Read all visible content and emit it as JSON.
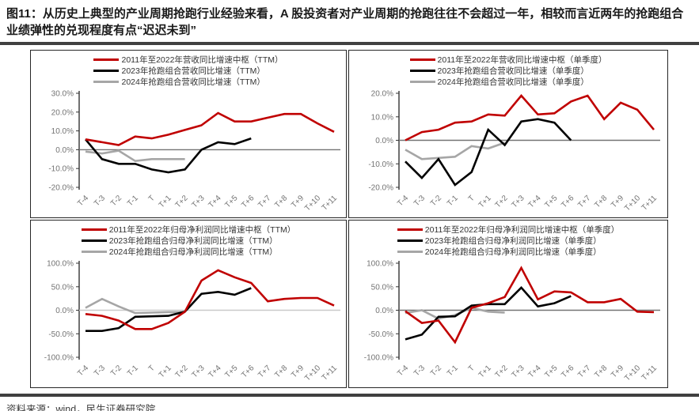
{
  "title": "图11：从历史上典型的产业周期抢跑行业经验来看，A 股投资者对产业周期的抢跑往往不会超过一年，相较而言近两年的抢跑组合业绩弹性的兑现程度有点“迟迟未到”",
  "source": "资料来源：wind，民生证券研究院",
  "colors": {
    "accent_red": "#C00000",
    "series_black": "#000000",
    "series_gray": "#A6A6A6",
    "axis": "#333333",
    "tick_label": "#737373",
    "divider_bar": "#404040"
  },
  "chart_data": [
    {
      "type": "line",
      "position": "top-left",
      "categories": [
        "T-4",
        "T-3",
        "T-2",
        "T-1",
        "T",
        "T+1",
        "T+2",
        "T+3",
        "T+4",
        "T+5",
        "T+6",
        "T+7",
        "T+8",
        "T+9",
        "T+10",
        "T+11"
      ],
      "ylim": [
        -20,
        30
      ],
      "ytick_values": [
        30,
        20,
        10,
        0,
        -10,
        -20
      ],
      "ytick_labels": [
        "30.0%",
        "20.0%",
        "10.0%",
        "0.0%",
        "-10.0%",
        "-20.0%"
      ],
      "zero_line_color": "#737373",
      "legend_position": "top",
      "grid": false,
      "series": [
        {
          "name": "2011年至2022年营收同比增速中枢（TTM）",
          "color": "#C00000",
          "values": [
            5.5,
            4,
            2.5,
            7,
            6,
            8,
            10.5,
            13,
            19.5,
            15,
            15,
            17,
            19,
            19,
            14,
            9.5
          ]
        },
        {
          "name": "2023年抢跑组合营收同比增速（TTM）",
          "color": "#000000",
          "values": [
            5.5,
            -5,
            -7.5,
            -7.5,
            -10.5,
            -12,
            -10.5,
            0,
            4,
            3,
            6
          ]
        },
        {
          "name": "2024年抢跑组合营收同比增速（TTM）",
          "color": "#A6A6A6",
          "values": [
            -1,
            -2,
            -0.5,
            -6,
            -5,
            -5,
            -5
          ]
        }
      ]
    },
    {
      "type": "line",
      "position": "top-right",
      "categories": [
        "T-4",
        "T-3",
        "T-2",
        "T-1",
        "T",
        "T+1",
        "T+2",
        "T+3",
        "T+4",
        "T+5",
        "T+6",
        "T+7",
        "T+8",
        "T+9",
        "T+10",
        "T+11"
      ],
      "ylim": [
        -20,
        20
      ],
      "ytick_values": [
        20,
        10,
        0,
        -10,
        -20
      ],
      "ytick_labels": [
        "20.0%",
        "10.0%",
        "0.0%",
        "-10.0%",
        "-20.0%"
      ],
      "zero_line_color": "#737373",
      "legend_position": "top",
      "grid": false,
      "series": [
        {
          "name": "2011年至2022年营收同比增速中枢（单季度）",
          "color": "#C00000",
          "values": [
            0,
            3.5,
            4.5,
            7.5,
            8,
            11,
            10.5,
            19,
            11,
            11.5,
            16.5,
            19,
            9,
            16,
            13,
            4.5
          ]
        },
        {
          "name": "2023年抢跑组合营收同比增速（单季度）",
          "color": "#000000",
          "values": [
            -9,
            -16,
            -8,
            -19,
            -13.5,
            4.5,
            -2,
            8,
            9,
            7.5,
            0
          ]
        },
        {
          "name": "2024年抢跑组合营收同比增速（单季度）",
          "color": "#A6A6A6",
          "values": [
            -4,
            -8,
            -7.5,
            -7,
            -2.5,
            -3.5,
            -1
          ]
        }
      ]
    },
    {
      "type": "line",
      "position": "bottom-left",
      "categories": [
        "T-4",
        "T-3",
        "T-2",
        "T-1",
        "T",
        "T+1",
        "T+2",
        "T+3",
        "T+4",
        "T+5",
        "T+6",
        "T+7",
        "T+8",
        "T+9",
        "T+10",
        "T+11"
      ],
      "ylim": [
        -100,
        100
      ],
      "ytick_values": [
        100,
        50,
        0,
        -50,
        -100
      ],
      "ytick_labels": [
        "100.0%",
        "50.0%",
        "0.0%",
        "-50.0%",
        "-100.0%"
      ],
      "zero_line_color": "#C9C9C9",
      "legend_position": "top",
      "grid": false,
      "series": [
        {
          "name": "2011年至2022年归母净利润同比增速中枢（TTM）",
          "color": "#C00000",
          "values": [
            -8,
            -12,
            -22,
            -40,
            -40,
            -27,
            -3,
            63,
            85,
            70,
            58,
            19,
            24,
            26,
            26,
            10
          ]
        },
        {
          "name": "2023年抢跑组合归母净利润同比增速（TTM）",
          "color": "#000000",
          "values": [
            -44,
            -44,
            -38,
            -14,
            -13,
            -12,
            -3,
            35,
            39,
            33,
            47
          ]
        },
        {
          "name": "2024年抢跑组合归母净利润同比增速（TTM）",
          "color": "#A6A6A6",
          "values": [
            5,
            24,
            8,
            -6,
            -5,
            -4,
            -4
          ]
        }
      ]
    },
    {
      "type": "line",
      "position": "bottom-right",
      "categories": [
        "T-4",
        "T-3",
        "T-2",
        "T-1",
        "T",
        "T+1",
        "T+2",
        "T+3",
        "T+4",
        "T+5",
        "T+6",
        "T+7",
        "T+8",
        "T+9",
        "T+10",
        "T+11"
      ],
      "ylim": [
        -100,
        100
      ],
      "ytick_values": [
        100,
        50,
        0,
        -50,
        -100
      ],
      "ytick_labels": [
        "100.0%",
        "50.0%",
        "0.0%",
        "-50.0%",
        "-100.0%"
      ],
      "zero_line_color": "#737373",
      "legend_position": "top",
      "grid": false,
      "series": [
        {
          "name": "2011年至2022年归母净利润同比增速中枢（单季度）",
          "color": "#C00000",
          "values": [
            -2,
            -27,
            -22,
            -68,
            5,
            15,
            28,
            90,
            23,
            40,
            38,
            17,
            17,
            24,
            -3,
            -4
          ]
        },
        {
          "name": "2023年抢跑组合归母净利润同比增速（单季度）",
          "color": "#000000",
          "values": [
            -62,
            -52,
            -14,
            -13,
            10,
            13,
            13,
            48,
            8,
            15,
            30
          ]
        },
        {
          "name": "2024年抢跑组合归母净利润同比增速（单季度）",
          "color": "#A6A6A6",
          "values": [
            -6,
            0,
            -18,
            -10,
            5,
            -3,
            -5
          ]
        }
      ]
    }
  ]
}
